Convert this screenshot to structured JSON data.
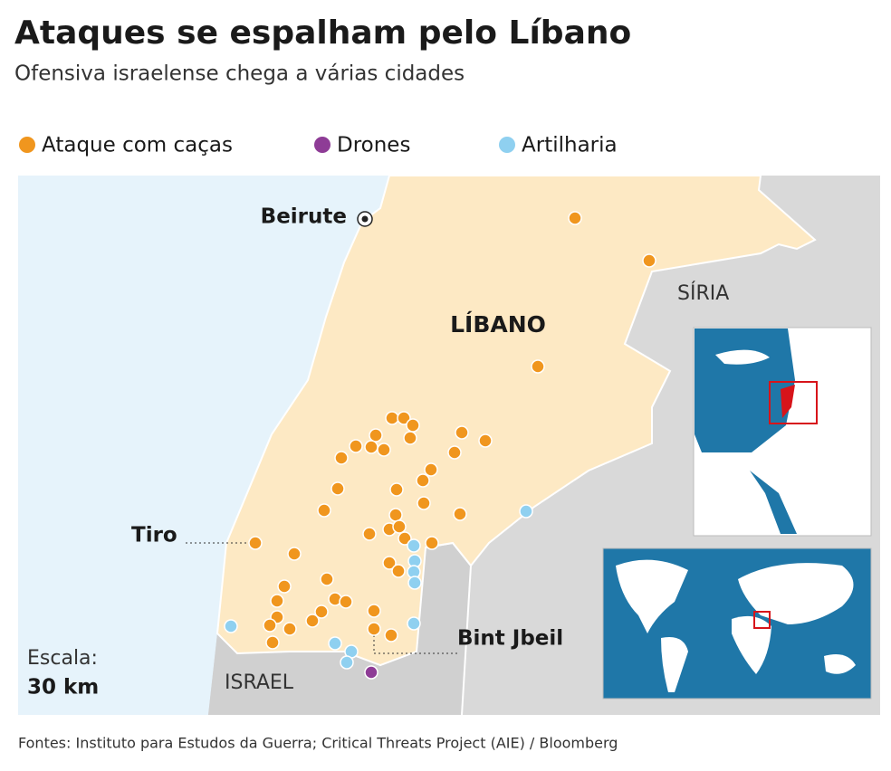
{
  "title": "Ataques se espalham pelo Líbano",
  "subtitle": "Ofensiva israelense chega a várias cidades",
  "legend": [
    {
      "name": "Ataque com caças",
      "color": "#f0961e"
    },
    {
      "name": "Drones",
      "color": "#8e3c96"
    },
    {
      "name": "Artilharia",
      "color": "#8fd0f0"
    }
  ],
  "map": {
    "country": "LÍBANO",
    "neighbors": [
      "SÍRIA",
      "ISRAEL"
    ],
    "cities": [
      "Beirute",
      "Tiro",
      "Bint Jbeil"
    ],
    "scale": {
      "label": "Escala:",
      "value": "30 km"
    }
  },
  "source": "Fontes: Instituto para Estudos da Guerra; Critical Threats Project (AIE) / Bloomberg"
}
